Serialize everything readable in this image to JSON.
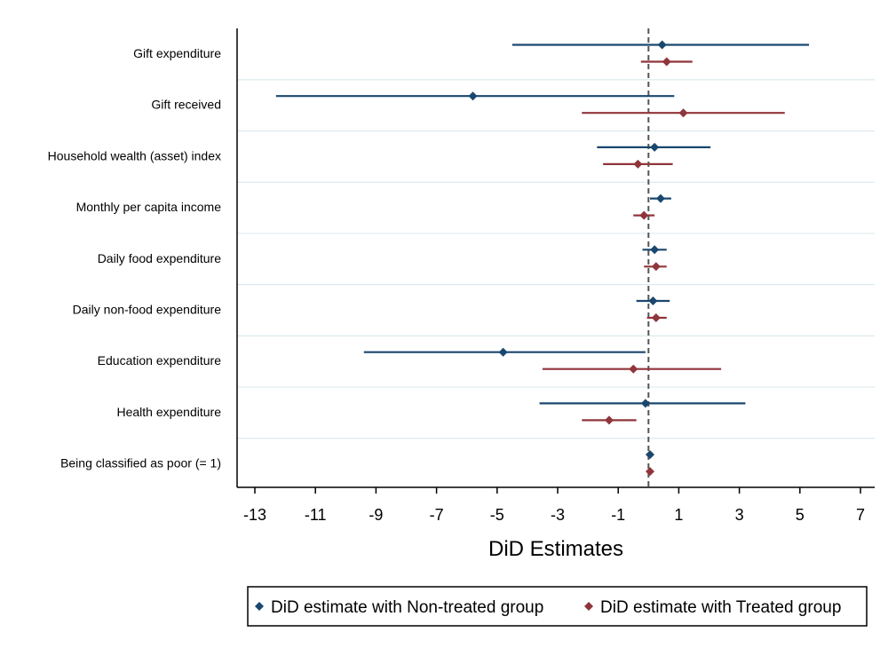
{
  "chart_data": {
    "type": "coefficient-plot",
    "title": "",
    "xlabel": "DiD Estimates",
    "ylabel": "",
    "xlim": [
      -14,
      7.5
    ],
    "x_ticks": [
      -13,
      -11,
      -9,
      -7,
      -5,
      -3,
      -1,
      1,
      3,
      5,
      7
    ],
    "reference_line": {
      "x": 0,
      "style": "dashed"
    },
    "categories": [
      "Gift expenditure",
      "Gift received",
      "Household wealth (asset) index",
      "Monthly per capita income",
      "Daily food expenditure",
      "Daily non-food expenditure",
      "Education expenditure",
      "Health expenditure",
      "Being classified as poor (= 1)"
    ],
    "series": [
      {
        "name": "DiD estimate with Non-treated group",
        "color": "#1a476f",
        "points": [
          {
            "estimate": 0.45,
            "ci": [
              -4.5,
              5.3
            ]
          },
          {
            "estimate": -5.8,
            "ci": [
              -12.3,
              0.85
            ]
          },
          {
            "estimate": 0.2,
            "ci": [
              -1.7,
              2.05
            ]
          },
          {
            "estimate": 0.4,
            "ci": [
              0.05,
              0.75
            ]
          },
          {
            "estimate": 0.2,
            "ci": [
              -0.2,
              0.6
            ]
          },
          {
            "estimate": 0.15,
            "ci": [
              -0.4,
              0.7
            ]
          },
          {
            "estimate": -4.8,
            "ci": [
              -9.4,
              -0.1
            ]
          },
          {
            "estimate": -0.1,
            "ci": [
              -3.6,
              3.2
            ]
          },
          {
            "estimate": 0.05,
            "ci": [
              -0.05,
              0.15
            ]
          }
        ]
      },
      {
        "name": "DiD estimate with Treated group",
        "color": "#90353b",
        "points": [
          {
            "estimate": 0.6,
            "ci": [
              -0.25,
              1.45
            ]
          },
          {
            "estimate": 1.15,
            "ci": [
              -2.2,
              4.5
            ]
          },
          {
            "estimate": -0.35,
            "ci": [
              -1.5,
              0.8
            ]
          },
          {
            "estimate": -0.15,
            "ci": [
              -0.5,
              0.2
            ]
          },
          {
            "estimate": 0.25,
            "ci": [
              -0.15,
              0.6
            ]
          },
          {
            "estimate": 0.25,
            "ci": [
              -0.05,
              0.6
            ]
          },
          {
            "estimate": -0.5,
            "ci": [
              -3.5,
              2.4
            ]
          },
          {
            "estimate": -1.3,
            "ci": [
              -2.2,
              -0.4
            ]
          },
          {
            "estimate": 0.05,
            "ci": [
              -0.05,
              0.15
            ]
          }
        ]
      }
    ],
    "grid": "horizontal",
    "legend_position": "bottom"
  }
}
